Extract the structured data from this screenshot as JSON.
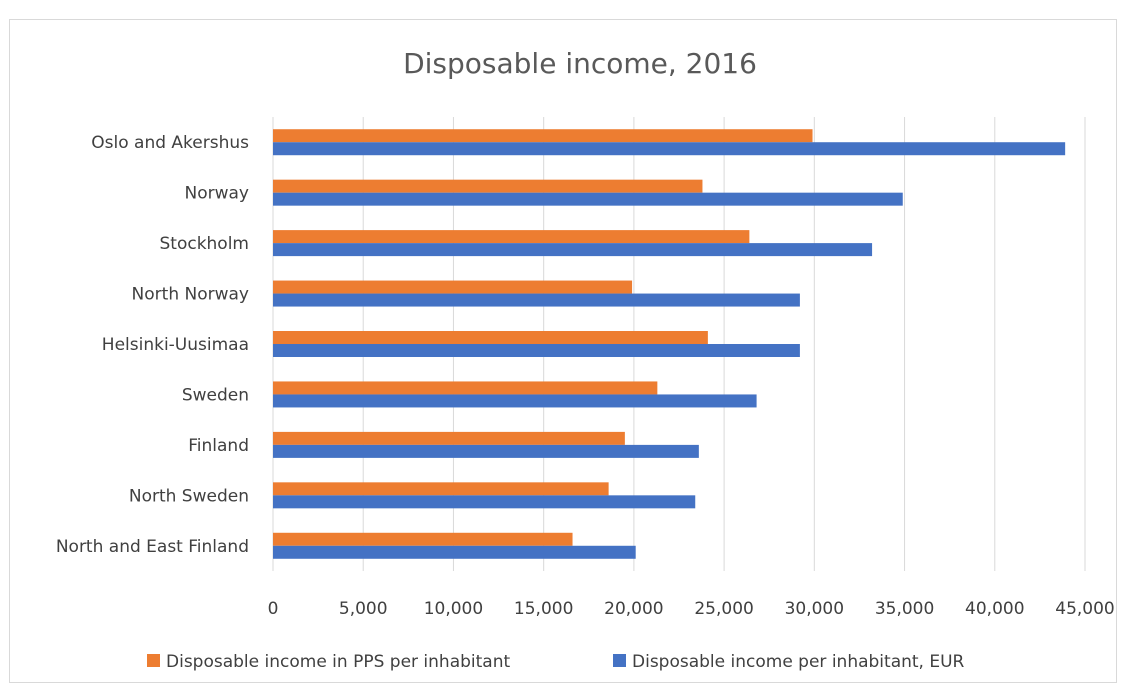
{
  "chart_data": {
    "type": "bar",
    "orientation": "horizontal",
    "title": "Disposable income, 2016",
    "xlabel": "",
    "ylabel": "",
    "categories": [
      "Oslo and Akershus",
      "Norway",
      "Stockholm",
      "North Norway",
      "Helsinki-Uusimaa",
      "Sweden",
      "Finland",
      "North Sweden",
      "North and East Finland"
    ],
    "series": [
      {
        "name": "Disposable income in PPS per inhabitant",
        "color": "#ed7d31",
        "values": [
          29900,
          23800,
          26400,
          19900,
          24100,
          21300,
          19500,
          18600,
          16600
        ]
      },
      {
        "name": "Disposable income per inhabitant, EUR",
        "color": "#4472c4",
        "values": [
          43900,
          34900,
          33200,
          29200,
          29200,
          26800,
          23600,
          23400,
          20100
        ]
      }
    ],
    "xlim": [
      0,
      45000
    ],
    "xticks": [
      0,
      5000,
      10000,
      15000,
      20000,
      25000,
      30000,
      35000,
      40000,
      45000
    ],
    "xtick_labels": [
      "0",
      "5,000",
      "10,000",
      "15,000",
      "20,000",
      "25,000",
      "30,000",
      "35,000",
      "40,000",
      "45,000"
    ],
    "grid": true,
    "legend_position": "bottom"
  }
}
